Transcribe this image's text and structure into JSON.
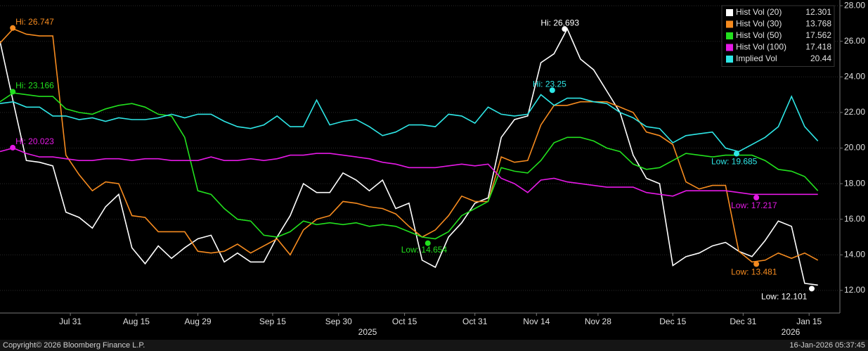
{
  "chart_data": {
    "type": "line",
    "x": [
      -16,
      -13,
      -10,
      -7,
      -4,
      -1,
      2,
      5,
      8,
      11,
      14,
      17,
      20,
      23,
      26,
      29,
      32,
      35,
      38,
      41,
      44,
      47,
      50,
      53,
      56,
      59,
      62,
      65,
      68,
      71,
      74,
      77,
      80,
      83,
      86,
      89,
      92,
      95,
      98,
      101,
      104,
      107,
      110,
      113,
      116,
      119,
      122,
      125,
      128,
      131,
      134,
      137,
      140,
      143,
      146,
      149,
      152,
      155,
      158,
      161,
      164,
      167,
      170
    ],
    "xlim": [
      -16,
      175
    ],
    "xticks": [
      {
        "value": 0,
        "label": "Jul 31"
      },
      {
        "value": 15,
        "label": "Aug 15"
      },
      {
        "value": 29,
        "label": "Aug 29"
      },
      {
        "value": 46,
        "label": "Sep 15"
      },
      {
        "value": 61,
        "label": "Sep 30"
      },
      {
        "value": 76,
        "label": "Oct 15"
      },
      {
        "value": 92,
        "label": "Oct 31"
      },
      {
        "value": 106,
        "label": "Nov 14"
      },
      {
        "value": 120,
        "label": "Nov 28"
      },
      {
        "value": 137,
        "label": "Dec 15"
      },
      {
        "value": 153,
        "label": "Dec 31"
      },
      {
        "value": 168,
        "label": "Jan 15"
      }
    ],
    "year_labels": [
      "2025",
      "2026"
    ],
    "ylim": [
      10.73,
      28.32
    ],
    "yticks": [
      {
        "value": 12,
        "label": "12.00"
      },
      {
        "value": 14,
        "label": "14.00"
      },
      {
        "value": 16,
        "label": "16.00"
      },
      {
        "value": 18,
        "label": "18.00"
      },
      {
        "value": 20,
        "label": "20.00"
      },
      {
        "value": 22,
        "label": "22.00"
      },
      {
        "value": 24,
        "label": "24.00"
      },
      {
        "value": 26,
        "label": "26.00"
      },
      {
        "value": 28,
        "label": "28.00"
      }
    ],
    "grid": true,
    "legend": "top-right",
    "series": [
      {
        "name": "Hist Vol (20)",
        "last": 12.301,
        "color": "#ffffff",
        "values": [
          26.0,
          22.6,
          19.3,
          19.2,
          19.0,
          16.4,
          16.1,
          15.5,
          16.7,
          17.4,
          14.4,
          13.5,
          14.5,
          13.8,
          14.4,
          14.9,
          15.1,
          13.6,
          14.1,
          13.6,
          13.6,
          15.0,
          16.2,
          18.0,
          17.5,
          17.5,
          18.6,
          18.2,
          17.6,
          18.2,
          16.6,
          16.9,
          13.7,
          13.3,
          15.0,
          15.8,
          16.9,
          17.2,
          20.6,
          21.6,
          21.8,
          24.8,
          25.3,
          26.7,
          25.0,
          24.4,
          23.2,
          22.0,
          19.6,
          18.3,
          18.0,
          13.4,
          13.9,
          14.1,
          14.5,
          14.7,
          14.2,
          13.9,
          14.8,
          15.9,
          15.6,
          12.4,
          12.3
        ]
      },
      {
        "name": "Hist Vol (30)",
        "last": 13.768,
        "color": "#f68b1f",
        "values": [
          25.9,
          26.7,
          26.4,
          26.3,
          26.3,
          19.6,
          18.5,
          17.6,
          18.1,
          18.0,
          16.2,
          16.1,
          15.3,
          15.3,
          15.3,
          14.2,
          14.1,
          14.2,
          14.6,
          14.1,
          14.5,
          14.9,
          14.0,
          15.4,
          16.0,
          16.2,
          17.0,
          16.9,
          16.7,
          16.6,
          16.3,
          15.6,
          15.0,
          15.4,
          16.2,
          17.3,
          17.0,
          17.0,
          19.5,
          19.2,
          19.3,
          21.3,
          22.4,
          22.4,
          22.6,
          22.6,
          22.6,
          22.3,
          22.0,
          20.9,
          20.7,
          20.2,
          18.1,
          17.7,
          17.9,
          17.9,
          14.2,
          13.6,
          13.7,
          14.1,
          13.8,
          14.1,
          13.7
        ]
      },
      {
        "name": "Hist Vol (50)",
        "last": 17.562,
        "color": "#22e01e",
        "values": [
          22.6,
          23.1,
          23.0,
          22.9,
          22.9,
          22.2,
          22.0,
          21.9,
          22.2,
          22.4,
          22.5,
          22.3,
          21.9,
          21.8,
          20.6,
          17.6,
          17.4,
          16.6,
          16.0,
          15.9,
          15.1,
          15.0,
          15.3,
          15.9,
          15.7,
          15.8,
          15.7,
          15.8,
          15.6,
          15.7,
          15.6,
          15.3,
          15.0,
          14.9,
          15.3,
          16.2,
          16.6,
          17.0,
          18.9,
          18.7,
          18.6,
          19.3,
          20.3,
          20.6,
          20.6,
          20.4,
          20.0,
          19.8,
          19.1,
          18.8,
          18.9,
          19.3,
          19.7,
          19.6,
          19.5,
          19.6,
          19.6,
          19.6,
          19.3,
          18.8,
          18.7,
          18.4,
          17.6
        ]
      },
      {
        "name": "Hist Vol (100)",
        "last": 17.418,
        "color": "#e619e6",
        "values": [
          19.8,
          20.0,
          19.7,
          19.5,
          19.5,
          19.4,
          19.3,
          19.3,
          19.4,
          19.4,
          19.3,
          19.4,
          19.4,
          19.3,
          19.3,
          19.3,
          19.5,
          19.3,
          19.3,
          19.4,
          19.3,
          19.4,
          19.6,
          19.6,
          19.7,
          19.7,
          19.6,
          19.5,
          19.4,
          19.2,
          19.1,
          18.9,
          18.9,
          18.9,
          19.0,
          19.1,
          19.0,
          19.1,
          18.3,
          18.0,
          17.5,
          18.2,
          18.3,
          18.1,
          18.0,
          17.9,
          17.8,
          17.8,
          17.8,
          17.5,
          17.4,
          17.3,
          17.6,
          17.6,
          17.6,
          17.6,
          17.5,
          17.4,
          17.4,
          17.4,
          17.4,
          17.4,
          17.4
        ]
      },
      {
        "name": "Implied Vol",
        "last": 20.44,
        "color": "#2ee6e6",
        "values": [
          22.5,
          22.6,
          22.3,
          22.3,
          21.8,
          21.8,
          21.6,
          21.7,
          21.5,
          21.7,
          21.6,
          21.6,
          21.7,
          21.9,
          21.7,
          21.9,
          21.9,
          21.5,
          21.2,
          21.1,
          21.3,
          21.8,
          21.2,
          21.2,
          22.7,
          21.3,
          21.5,
          21.6,
          21.2,
          20.7,
          20.9,
          21.3,
          21.3,
          21.2,
          21.9,
          21.8,
          21.4,
          22.3,
          21.9,
          21.8,
          21.9,
          23.0,
          22.4,
          22.8,
          22.8,
          22.6,
          22.5,
          22.0,
          21.7,
          21.2,
          21.1,
          20.3,
          20.7,
          20.8,
          20.9,
          20.0,
          19.8,
          20.2,
          20.6,
          21.2,
          22.9,
          21.2,
          20.4
        ]
      }
    ],
    "annotations": [
      {
        "series": 1,
        "label": "Hi: 26.747",
        "x": -13.1,
        "y": 26.747
      },
      {
        "series": 2,
        "label": "Hi: 23.166",
        "x": -13.1,
        "y": 23.166
      },
      {
        "series": 3,
        "label": "Hi: 20.023",
        "x": -13.1,
        "y": 20.023
      },
      {
        "series": 0,
        "label": "Hi: 26.693",
        "x": 112.4,
        "y": 26.693
      },
      {
        "series": 4,
        "label": "Hi: 23.25",
        "x": 109.6,
        "y": 23.25
      },
      {
        "series": 2,
        "label": "Low: 14.654",
        "x": 81.3,
        "y": 14.654
      },
      {
        "series": 4,
        "label": "Low: 19.685",
        "x": 151.5,
        "y": 19.685
      },
      {
        "series": 3,
        "label": "Low: 17.217",
        "x": 156,
        "y": 17.217
      },
      {
        "series": 1,
        "label": "Low: 13.481",
        "x": 156,
        "y": 13.481
      },
      {
        "series": 0,
        "label": "Low: 12.101",
        "x": 168.6,
        "y": 12.101
      }
    ],
    "footer": {
      "copyright": "Copyright© 2026 Bloomberg Finance L.P.",
      "timestamp": "16-Jan-2026 05:37:45"
    }
  }
}
